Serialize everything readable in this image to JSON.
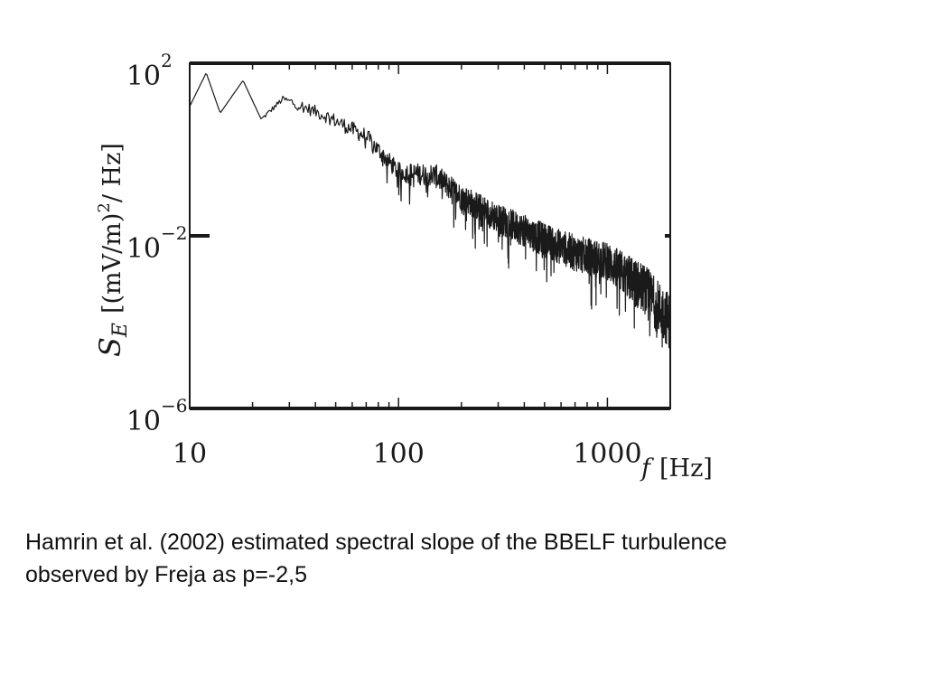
{
  "chart_data": {
    "type": "line",
    "title": "",
    "xlabel_italic": "f",
    "xlabel_rest": "[Hz]",
    "ylabel_italic": "S",
    "ylabel_sub": "E",
    "ylabel_pre_sup": "[(mV/m)",
    "ylabel_sup": "2",
    "ylabel_post_sup": "/ Hz]",
    "x_scale": "log",
    "y_scale": "log",
    "xlim": [
      10,
      2000
    ],
    "ylim": [
      1e-06,
      100
    ],
    "x_ticks": [
      {
        "label": "10",
        "value": 10
      },
      {
        "label": "100",
        "value": 100
      },
      {
        "label": "1000",
        "value": 1000
      }
    ],
    "y_ticks": [
      {
        "base": "10",
        "exp": "2",
        "value": 100
      },
      {
        "base": "10",
        "exp": "−2",
        "value": 0.01
      },
      {
        "base": "10",
        "exp": "−6",
        "value": 1e-06
      }
    ],
    "grid": false,
    "legend": "none",
    "line_color": "#1a1a1a",
    "trend": [
      {
        "f": 10,
        "S": 10
      },
      {
        "f": 12,
        "S": 60
      },
      {
        "f": 14,
        "S": 7
      },
      {
        "f": 18,
        "S": 40
      },
      {
        "f": 22,
        "S": 5
      },
      {
        "f": 28,
        "S": 15
      },
      {
        "f": 45,
        "S": 6
      },
      {
        "f": 70,
        "S": 2
      },
      {
        "f": 100,
        "S": 0.3
      },
      {
        "f": 150,
        "S": 0.25
      },
      {
        "f": 200,
        "S": 0.08
      },
      {
        "f": 300,
        "S": 0.025
      },
      {
        "f": 500,
        "S": 0.008
      },
      {
        "f": 700,
        "S": 0.004
      },
      {
        "f": 1000,
        "S": 0.0025
      },
      {
        "f": 1500,
        "S": 0.0006
      },
      {
        "f": 2000,
        "S": 0.0001
      }
    ],
    "noise_decades": [
      {
        "f": 30,
        "amp": 0.25
      },
      {
        "f": 100,
        "amp": 0.45
      },
      {
        "f": 300,
        "amp": 0.7
      },
      {
        "f": 1000,
        "amp": 0.9
      },
      {
        "f": 2000,
        "amp": 1.3
      }
    ]
  },
  "caption": {
    "line1": "Hamrin et al. (2002) estimated spectral slope of the BBELF turbulence",
    "line2": "observed by Freja as p=-2,5"
  }
}
